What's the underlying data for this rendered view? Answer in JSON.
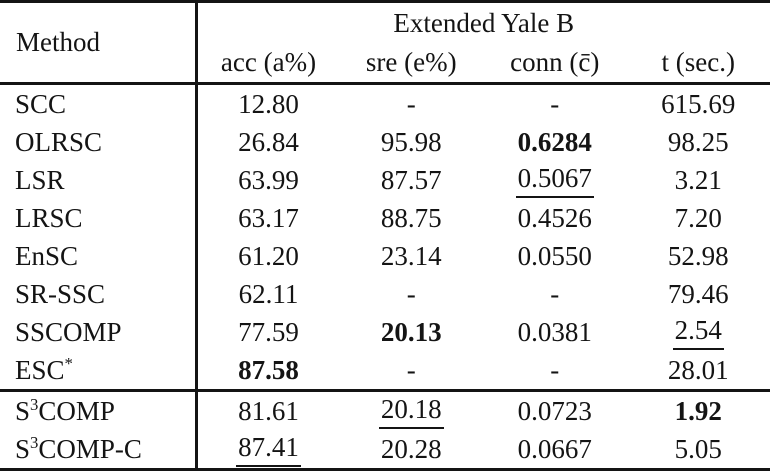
{
  "page": {
    "background_color": "#ffffff",
    "text_color": "#141414"
  },
  "table": {
    "method_header": "Method",
    "group_header": "Extended Yale B",
    "columns": [
      "acc (a%)",
      "sre (e%)",
      "conn (c̄)",
      "t (sec.)"
    ],
    "sections": [
      {
        "rows": [
          {
            "method": [
              {
                "t": "SCC"
              }
            ],
            "cells": [
              {
                "text": "12.80"
              },
              {
                "text": "-"
              },
              {
                "text": "-"
              },
              {
                "text": "615.69"
              }
            ]
          },
          {
            "method": [
              {
                "t": "OLRSC"
              }
            ],
            "cells": [
              {
                "text": "26.84"
              },
              {
                "text": "95.98"
              },
              {
                "text": "0.6284",
                "bold": true
              },
              {
                "text": "98.25"
              }
            ]
          },
          {
            "method": [
              {
                "t": "LSR"
              }
            ],
            "cells": [
              {
                "text": "63.99"
              },
              {
                "text": "87.57"
              },
              {
                "text": "0.5067",
                "underline": true
              },
              {
                "text": "3.21"
              }
            ]
          },
          {
            "method": [
              {
                "t": "LRSC"
              }
            ],
            "cells": [
              {
                "text": "63.17"
              },
              {
                "text": "88.75"
              },
              {
                "text": "0.4526"
              },
              {
                "text": "7.20"
              }
            ]
          },
          {
            "method": [
              {
                "t": "EnSC"
              }
            ],
            "cells": [
              {
                "text": "61.20"
              },
              {
                "text": "23.14"
              },
              {
                "text": "0.0550"
              },
              {
                "text": "52.98"
              }
            ]
          },
          {
            "method": [
              {
                "t": "SR-SSC"
              }
            ],
            "cells": [
              {
                "text": "62.11"
              },
              {
                "text": "-"
              },
              {
                "text": "-"
              },
              {
                "text": "79.46"
              }
            ]
          },
          {
            "method": [
              {
                "t": "SSCOMP"
              }
            ],
            "cells": [
              {
                "text": "77.59"
              },
              {
                "text": "20.13",
                "bold": true
              },
              {
                "text": "0.0381"
              },
              {
                "text": "2.54",
                "underline": true
              }
            ]
          },
          {
            "method": [
              {
                "t": "ESC"
              },
              {
                "t": "*",
                "sup": true
              }
            ],
            "cells": [
              {
                "text": "87.58",
                "bold": true
              },
              {
                "text": "-"
              },
              {
                "text": "-"
              },
              {
                "text": "28.01"
              }
            ]
          }
        ]
      },
      {
        "rows": [
          {
            "method": [
              {
                "t": "S"
              },
              {
                "t": "3",
                "sup": true
              },
              {
                "t": "COMP"
              }
            ],
            "cells": [
              {
                "text": "81.61"
              },
              {
                "text": "20.18",
                "underline": true
              },
              {
                "text": "0.0723"
              },
              {
                "text": "1.92",
                "bold": true
              }
            ]
          },
          {
            "method": [
              {
                "t": "S"
              },
              {
                "t": "3",
                "sup": true
              },
              {
                "t": "COMP-C"
              }
            ],
            "cells": [
              {
                "text": "87.41",
                "underline": true
              },
              {
                "text": "20.28"
              },
              {
                "text": "0.0667"
              },
              {
                "text": "5.05"
              }
            ]
          }
        ]
      }
    ]
  }
}
